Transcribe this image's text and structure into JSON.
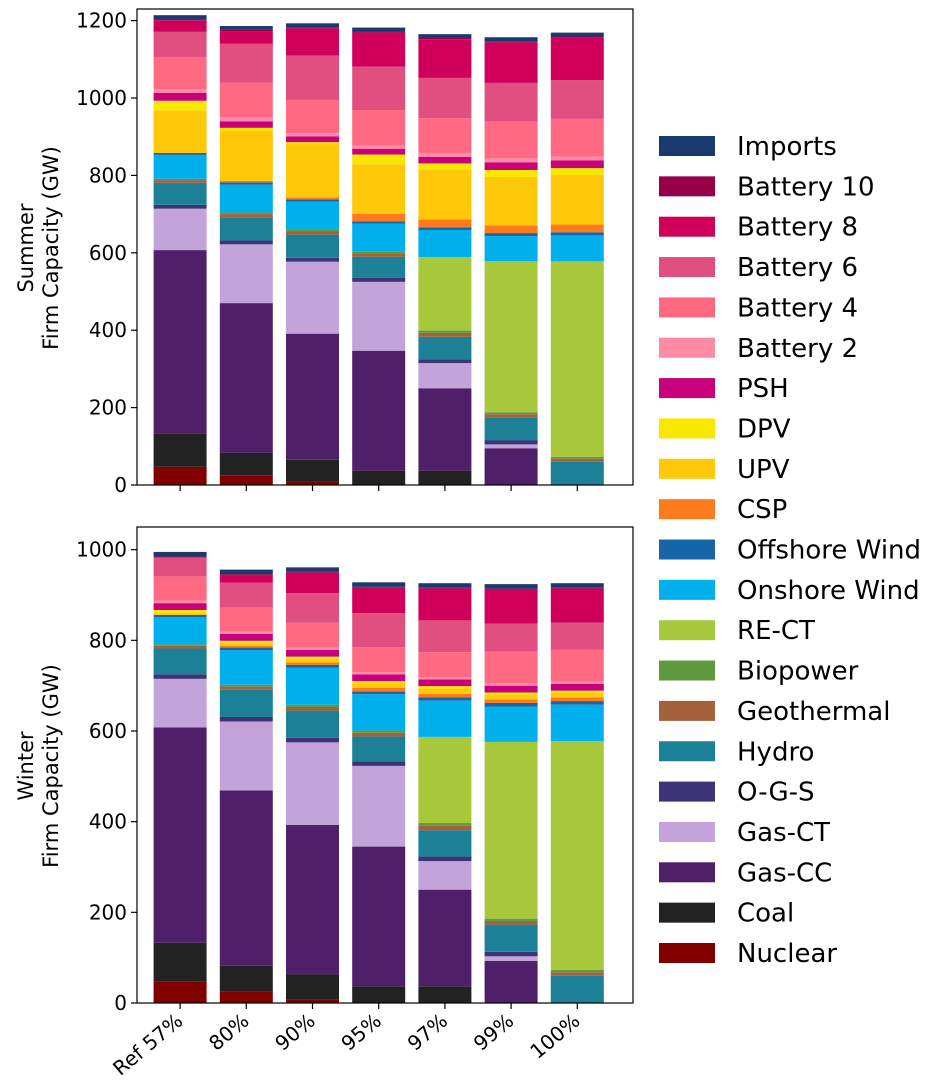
{
  "chart_data": [
    {
      "type": "bar",
      "stacked": true,
      "ylabel_lines": [
        "Summer",
        "Firm Capacity (GW)"
      ],
      "ylim": [
        0,
        1230
      ],
      "yticks": [
        0,
        200,
        400,
        600,
        800,
        1000,
        1200
      ],
      "categories": [
        "Ref 57%",
        "80%",
        "90%",
        "95%",
        "97%",
        "99%",
        "100%"
      ],
      "series": [
        {
          "name": "Nuclear",
          "color": "#800000",
          "values": [
            47,
            25,
            8,
            0,
            0,
            0,
            0
          ]
        },
        {
          "name": "Coal",
          "color": "#222222",
          "values": [
            85,
            58,
            57,
            37,
            37,
            0,
            0
          ]
        },
        {
          "name": "Gas-CC",
          "color": "#4f1f6a",
          "values": [
            475,
            387,
            326,
            310,
            213,
            95,
            0
          ]
        },
        {
          "name": "Gas-CT",
          "color": "#c4a2da",
          "values": [
            107,
            152,
            186,
            178,
            65,
            10,
            0
          ]
        },
        {
          "name": "O-G-S",
          "color": "#3b3578",
          "values": [
            10,
            10,
            10,
            10,
            10,
            10,
            0
          ]
        },
        {
          "name": "Hydro",
          "color": "#1c8096",
          "values": [
            57,
            60,
            60,
            55,
            58,
            60,
            60
          ]
        },
        {
          "name": "Geothermal",
          "color": "#a5613a",
          "values": [
            7,
            8,
            8,
            8,
            10,
            8,
            8
          ]
        },
        {
          "name": "Biopower",
          "color": "#5e9940",
          "values": [
            3,
            4,
            5,
            5,
            6,
            5,
            5
          ]
        },
        {
          "name": "RE-CT",
          "color": "#a8c83c",
          "values": [
            0,
            0,
            0,
            0,
            190,
            390,
            505
          ]
        },
        {
          "name": "Onshore Wind",
          "color": "#00b0ec",
          "values": [
            62,
            72,
            72,
            72,
            70,
            65,
            67
          ]
        },
        {
          "name": "Offshore Wind",
          "color": "#1766a8",
          "values": [
            5,
            6,
            6,
            6,
            7,
            8,
            8
          ]
        },
        {
          "name": "CSP",
          "color": "#fd7b1d",
          "values": [
            0,
            4,
            5,
            20,
            20,
            20,
            20
          ]
        },
        {
          "name": "UPV",
          "color": "#ffc808",
          "values": [
            110,
            130,
            138,
            128,
            130,
            125,
            128
          ]
        },
        {
          "name": "DPV",
          "color": "#f8e800",
          "values": [
            25,
            7,
            5,
            25,
            15,
            18,
            18
          ]
        },
        {
          "name": "PSH",
          "color": "#c8007c",
          "values": [
            20,
            17,
            15,
            15,
            17,
            20,
            20
          ]
        },
        {
          "name": "Battery 2",
          "color": "#ff8aa5",
          "values": [
            10,
            10,
            8,
            8,
            10,
            10,
            10
          ]
        },
        {
          "name": "Battery 4",
          "color": "#ff6a82",
          "values": [
            83,
            90,
            86,
            92,
            90,
            95,
            97
          ]
        },
        {
          "name": "Battery 6",
          "color": "#e14f80",
          "values": [
            65,
            100,
            115,
            112,
            104,
            100,
            100
          ]
        },
        {
          "name": "Battery 8",
          "color": "#d0005a",
          "values": [
            30,
            33,
            70,
            88,
            100,
            105,
            110
          ]
        },
        {
          "name": "Battery 10",
          "color": "#950049",
          "values": [
            3,
            3,
            3,
            3,
            3,
            3,
            3
          ]
        },
        {
          "name": "Imports",
          "color": "#193a6e",
          "values": [
            10,
            10,
            10,
            10,
            10,
            10,
            10
          ]
        }
      ]
    },
    {
      "type": "bar",
      "stacked": true,
      "ylabel_lines": [
        "Winter",
        "Firm Capacity (GW)"
      ],
      "ylim": [
        0,
        1050
      ],
      "yticks": [
        0,
        200,
        400,
        600,
        800,
        1000
      ],
      "categories": [
        "Ref 57%",
        "80%",
        "90%",
        "95%",
        "97%",
        "99%",
        "100%"
      ],
      "series": [
        {
          "name": "Nuclear",
          "color": "#800000",
          "values": [
            47,
            25,
            8,
            0,
            0,
            0,
            0
          ]
        },
        {
          "name": "Coal",
          "color": "#222222",
          "values": [
            86,
            57,
            55,
            37,
            37,
            0,
            0
          ]
        },
        {
          "name": "Gas-CC",
          "color": "#4f1f6a",
          "values": [
            475,
            387,
            330,
            308,
            213,
            93,
            0
          ]
        },
        {
          "name": "Gas-CT",
          "color": "#c4a2da",
          "values": [
            107,
            152,
            182,
            178,
            63,
            10,
            0
          ]
        },
        {
          "name": "O-G-S",
          "color": "#3b3578",
          "values": [
            10,
            10,
            10,
            10,
            10,
            10,
            0
          ]
        },
        {
          "name": "Hydro",
          "color": "#1c8096",
          "values": [
            57,
            60,
            60,
            55,
            58,
            60,
            60
          ]
        },
        {
          "name": "Geothermal",
          "color": "#a5613a",
          "values": [
            6,
            7,
            8,
            8,
            10,
            8,
            8
          ]
        },
        {
          "name": "Biopower",
          "color": "#5e9940",
          "values": [
            3,
            4,
            5,
            5,
            6,
            5,
            5
          ]
        },
        {
          "name": "RE-CT",
          "color": "#a8c83c",
          "values": [
            0,
            0,
            0,
            0,
            190,
            390,
            505
          ]
        },
        {
          "name": "Onshore Wind",
          "color": "#00b0ec",
          "values": [
            60,
            76,
            82,
            80,
            80,
            78,
            80
          ]
        },
        {
          "name": "Offshore Wind",
          "color": "#1766a8",
          "values": [
            5,
            6,
            6,
            6,
            7,
            8,
            8
          ]
        },
        {
          "name": "CSP",
          "color": "#fd7b1d",
          "values": [
            0,
            4,
            5,
            8,
            8,
            8,
            8
          ]
        },
        {
          "name": "UPV",
          "color": "#ffc808",
          "values": [
            5,
            6,
            8,
            10,
            12,
            10,
            10
          ]
        },
        {
          "name": "DPV",
          "color": "#f8e800",
          "values": [
            6,
            5,
            5,
            5,
            5,
            5,
            5
          ]
        },
        {
          "name": "PSH",
          "color": "#c8007c",
          "values": [
            15,
            15,
            15,
            15,
            15,
            15,
            15
          ]
        },
        {
          "name": "Battery 2",
          "color": "#ff8aa5",
          "values": [
            6,
            5,
            5,
            5,
            5,
            5,
            5
          ]
        },
        {
          "name": "Battery 4",
          "color": "#ff6a82",
          "values": [
            53,
            53,
            55,
            55,
            55,
            70,
            70
          ]
        },
        {
          "name": "Battery 6",
          "color": "#e14f80",
          "values": [
            42,
            55,
            65,
            75,
            70,
            62,
            60
          ]
        },
        {
          "name": "Battery 8",
          "color": "#d0005a",
          "values": [
            0,
            17,
            45,
            56,
            70,
            75,
            75
          ]
        },
        {
          "name": "Battery 10",
          "color": "#950049",
          "values": [
            2,
            2,
            2,
            2,
            2,
            2,
            2
          ]
        },
        {
          "name": "Imports",
          "color": "#193a6e",
          "values": [
            10,
            10,
            10,
            10,
            10,
            10,
            10
          ]
        }
      ]
    }
  ],
  "legend": {
    "placement": "right",
    "items": [
      {
        "label": "Imports",
        "color": "#193a6e"
      },
      {
        "label": "Battery 10",
        "color": "#950049"
      },
      {
        "label": "Battery 8",
        "color": "#d0005a"
      },
      {
        "label": "Battery 6",
        "color": "#e14f80"
      },
      {
        "label": "Battery 4",
        "color": "#ff6a82"
      },
      {
        "label": "Battery 2",
        "color": "#ff8aa5"
      },
      {
        "label": "PSH",
        "color": "#c8007c"
      },
      {
        "label": "DPV",
        "color": "#f8e800"
      },
      {
        "label": "UPV",
        "color": "#ffc808"
      },
      {
        "label": "CSP",
        "color": "#fd7b1d"
      },
      {
        "label": "Offshore Wind",
        "color": "#1766a8"
      },
      {
        "label": "Onshore Wind",
        "color": "#00b0ec"
      },
      {
        "label": "RE-CT",
        "color": "#a8c83c"
      },
      {
        "label": "Biopower",
        "color": "#5e9940"
      },
      {
        "label": "Geothermal",
        "color": "#a5613a"
      },
      {
        "label": "Hydro",
        "color": "#1c8096"
      },
      {
        "label": "O-G-S",
        "color": "#3b3578"
      },
      {
        "label": "Gas-CT",
        "color": "#c4a2da"
      },
      {
        "label": "Gas-CC",
        "color": "#4f1f6a"
      },
      {
        "label": "Coal",
        "color": "#222222"
      },
      {
        "label": "Nuclear",
        "color": "#800000"
      }
    ]
  }
}
